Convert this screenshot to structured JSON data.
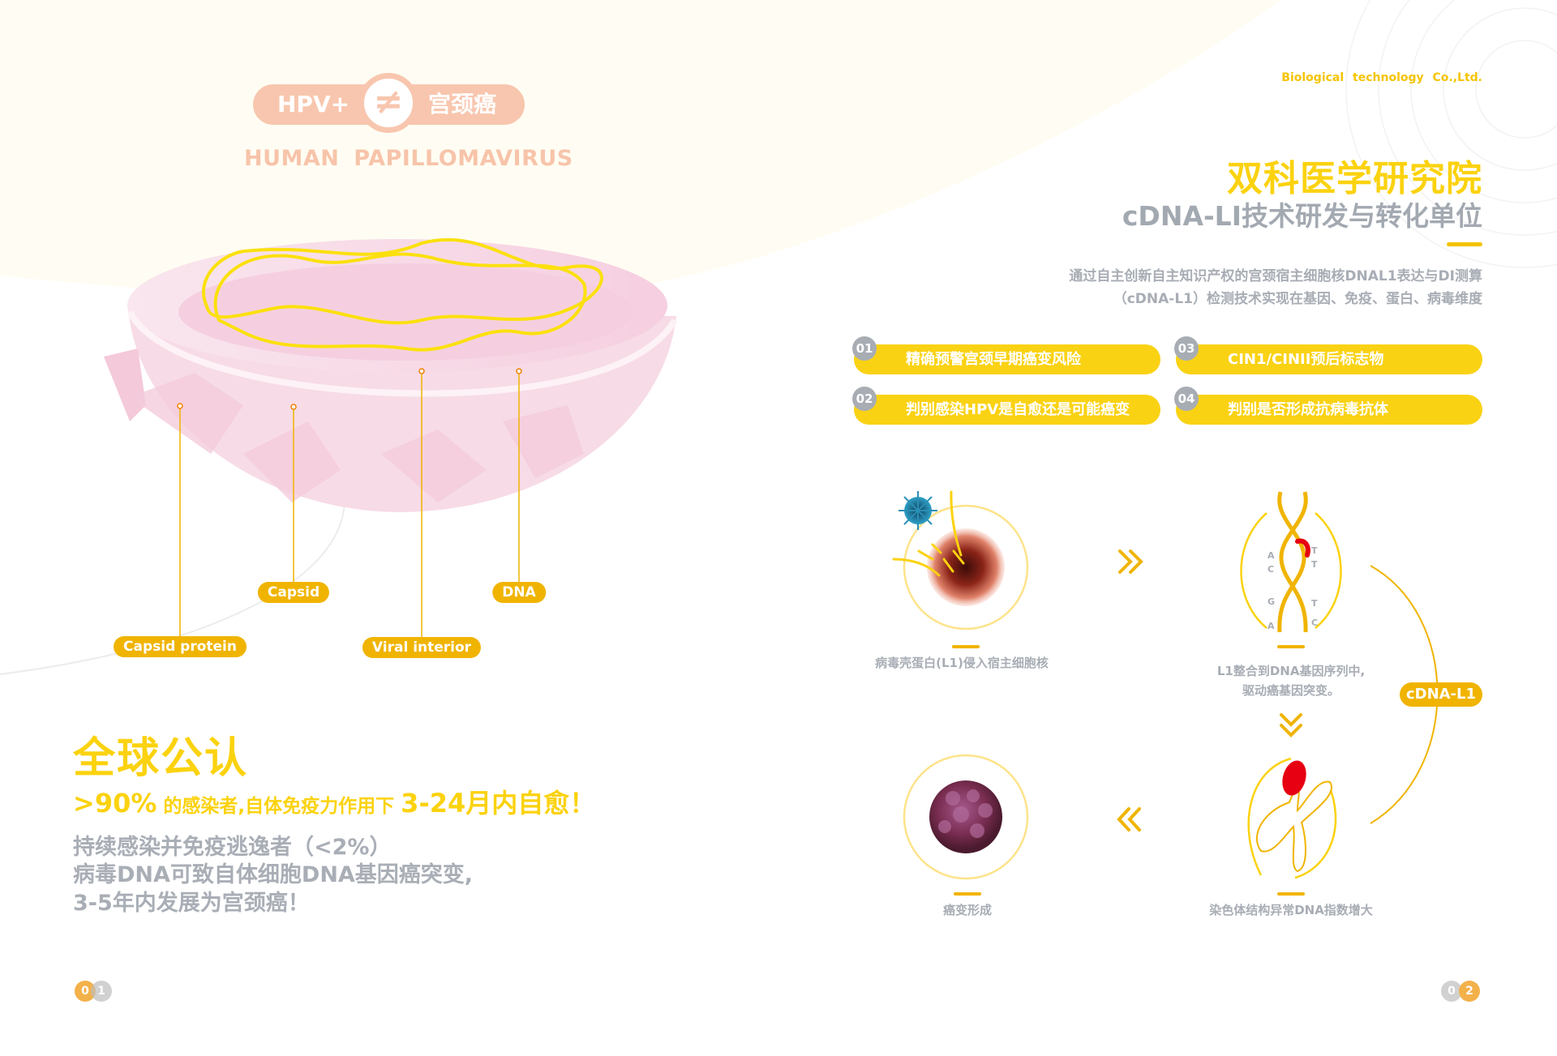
{
  "colors": {
    "accent_yellow": "#fbd20e",
    "label_orange": "#f0b400",
    "peach": "#f8c6ae",
    "gray_text": "#a8adb5",
    "background_cream": "#fffdf3"
  },
  "left_page": {
    "header": {
      "left": "HPV+",
      "symbol": "≠",
      "right": "宫颈癌",
      "subtitle": "HUMAN  PAPILLOMAVIRUS"
    },
    "diagram_labels": {
      "capsid_protein": "Capsid protein",
      "capsid": "Capsid",
      "viral_interior": "Viral interior",
      "dna": "DNA"
    },
    "headline": "全球公认",
    "stat_line": {
      "percent": ">90%",
      "middle": " 的感染者,自体免疫力作用下 ",
      "highlight": "3-24月内自愈！"
    },
    "body_lines": [
      "持续感染并免疫逃逸者（<2%）",
      "病毒DNA可致自体细胞DNA基因癌突变,",
      "3-5年内发展为宫颈癌！"
    ],
    "page_number": [
      "0",
      "1"
    ]
  },
  "right_page": {
    "company": "Biological  technology Co.,Ltd.",
    "title": "双科医学研究院",
    "subtitle": "cDNA-LI技术研发与转化单位",
    "description": [
      "通过自主创新自主知识产权的宫颈宿主细胞核DNAL1表达与DI测算",
      "（cDNA-L1）检测技术实现在基因、免疫、蛋白、病毒维度"
    ],
    "features": [
      {
        "num": "01",
        "text": "精确预警宫颈早期癌变风险"
      },
      {
        "num": "02",
        "text": "判别感染HPV是自愈还是可能癌变"
      },
      {
        "num": "03",
        "text": "CIN1/CINII预后标志物"
      },
      {
        "num": "04",
        "text": "判别是否形成抗病毒抗体"
      }
    ],
    "process": {
      "step1": "病毒壳蛋白(L1)侵入宿主细胞核",
      "step2": [
        "L1整合到DNA基因序列中,",
        "驱动癌基因突变。"
      ],
      "step3": "染色体结构异常DNA指数增大",
      "step4": "癌变形成",
      "cycle_label": "cDNA-L1",
      "dna_bases_left": [
        "A",
        "C",
        "G",
        "A"
      ],
      "dna_bases_right": [
        "T",
        "T",
        "T",
        "C"
      ],
      "icons": [
        "virus-icon",
        "cell-nucleus-icon",
        "dna-helix-icon",
        "chromosome-icon",
        "tumor-icon",
        "double-chevron-right-icon",
        "double-chevron-down-icon",
        "double-chevron-left-icon"
      ]
    },
    "page_number": [
      "0",
      "2"
    ]
  }
}
